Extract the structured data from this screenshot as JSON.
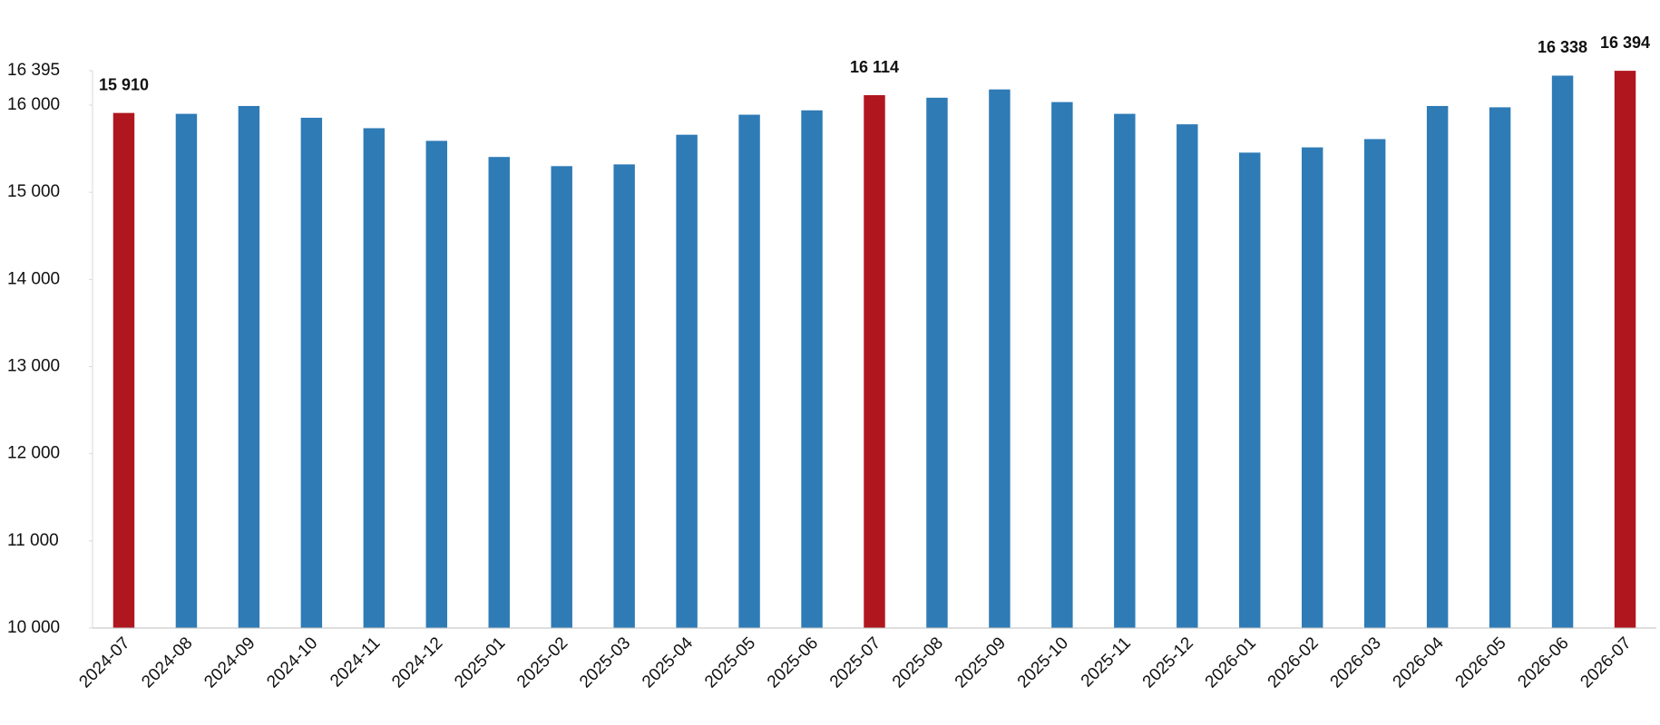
{
  "chart_data": {
    "type": "bar",
    "categories": [
      "2024-07",
      "2024-08",
      "2024-09",
      "2024-10",
      "2024-11",
      "2024-12",
      "2025-01",
      "2025-02",
      "2025-03",
      "2025-04",
      "2025-05",
      "2025-06",
      "2025-07",
      "2025-08",
      "2025-09",
      "2025-10",
      "2025-11",
      "2025-12",
      "2026-01",
      "2026-02",
      "2026-03",
      "2026-04",
      "2026-05",
      "2026-06",
      "2026-07"
    ],
    "values": [
      15910,
      15900,
      15990,
      15855,
      15735,
      15590,
      15405,
      15300,
      15320,
      15660,
      15890,
      15940,
      16114,
      16085,
      16180,
      16035,
      15900,
      15780,
      15455,
      15515,
      15610,
      15990,
      15975,
      16338,
      16394
    ],
    "value_labels": [
      "15 910",
      null,
      null,
      null,
      null,
      null,
      null,
      null,
      null,
      null,
      null,
      null,
      "16 114",
      null,
      null,
      null,
      null,
      null,
      null,
      null,
      null,
      null,
      null,
      "16 338",
      "16 394"
    ],
    "colors": [
      "#b0161d",
      "#2e7bb6",
      "#2e7bb6",
      "#2e7bb6",
      "#2e7bb6",
      "#2e7bb6",
      "#2e7bb6",
      "#2e7bb6",
      "#2e7bb6",
      "#2e7bb6",
      "#2e7bb6",
      "#2e7bb6",
      "#b0161d",
      "#2e7bb6",
      "#2e7bb6",
      "#2e7bb6",
      "#2e7bb6",
      "#2e7bb6",
      "#2e7bb6",
      "#2e7bb6",
      "#2e7bb6",
      "#2e7bb6",
      "#2e7bb6",
      "#2e7bb6",
      "#b0161d"
    ],
    "ylim": [
      10000,
      16395
    ],
    "yticks": [
      {
        "value": 10000,
        "label": "10 000"
      },
      {
        "value": 11000,
        "label": "11 000"
      },
      {
        "value": 12000,
        "label": "12 000"
      },
      {
        "value": 13000,
        "label": "13 000"
      },
      {
        "value": 14000,
        "label": "14 000"
      },
      {
        "value": 15000,
        "label": "15 000"
      },
      {
        "value": 16000,
        "label": "16 000"
      },
      {
        "value": 16395,
        "label": "16 395"
      }
    ],
    "grid": false
  }
}
